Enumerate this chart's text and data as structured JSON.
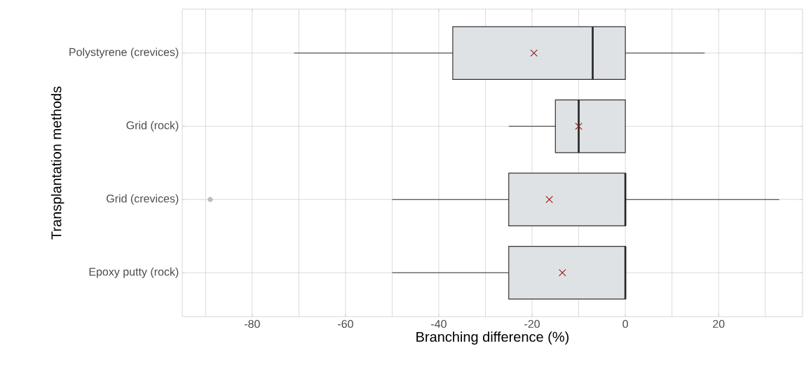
{
  "chart_data": {
    "type": "box",
    "orientation": "horizontal",
    "xlabel": "Branching difference (%)",
    "ylabel": "Transplantation methods",
    "categories": [
      "Polystyrene (crevices)",
      "Grid (rock)",
      "Grid (crevices)",
      "Epoxy putty (rock)"
    ],
    "color": "#dfe2e5",
    "boxes": [
      {
        "low": -71,
        "q1": -37,
        "median": -7,
        "q3": 0,
        "high": 17,
        "mean": -19.6
      },
      {
        "low": -25,
        "q1": -15,
        "median": -10,
        "q3": 0,
        "high": 0,
        "mean": -10
      },
      {
        "low": -50,
        "q1": -25,
        "median": 0,
        "q3": 0,
        "high": 33,
        "mean": -16.3,
        "outliers": [
          -89
        ]
      },
      {
        "low": -50,
        "q1": -25,
        "median": 0,
        "q3": 0,
        "high": 0,
        "mean": -13.5
      }
    ],
    "xlim": [
      -95,
      38
    ],
    "xticks": [
      -80,
      -60,
      -40,
      -20,
      0,
      20
    ],
    "grid": true
  }
}
